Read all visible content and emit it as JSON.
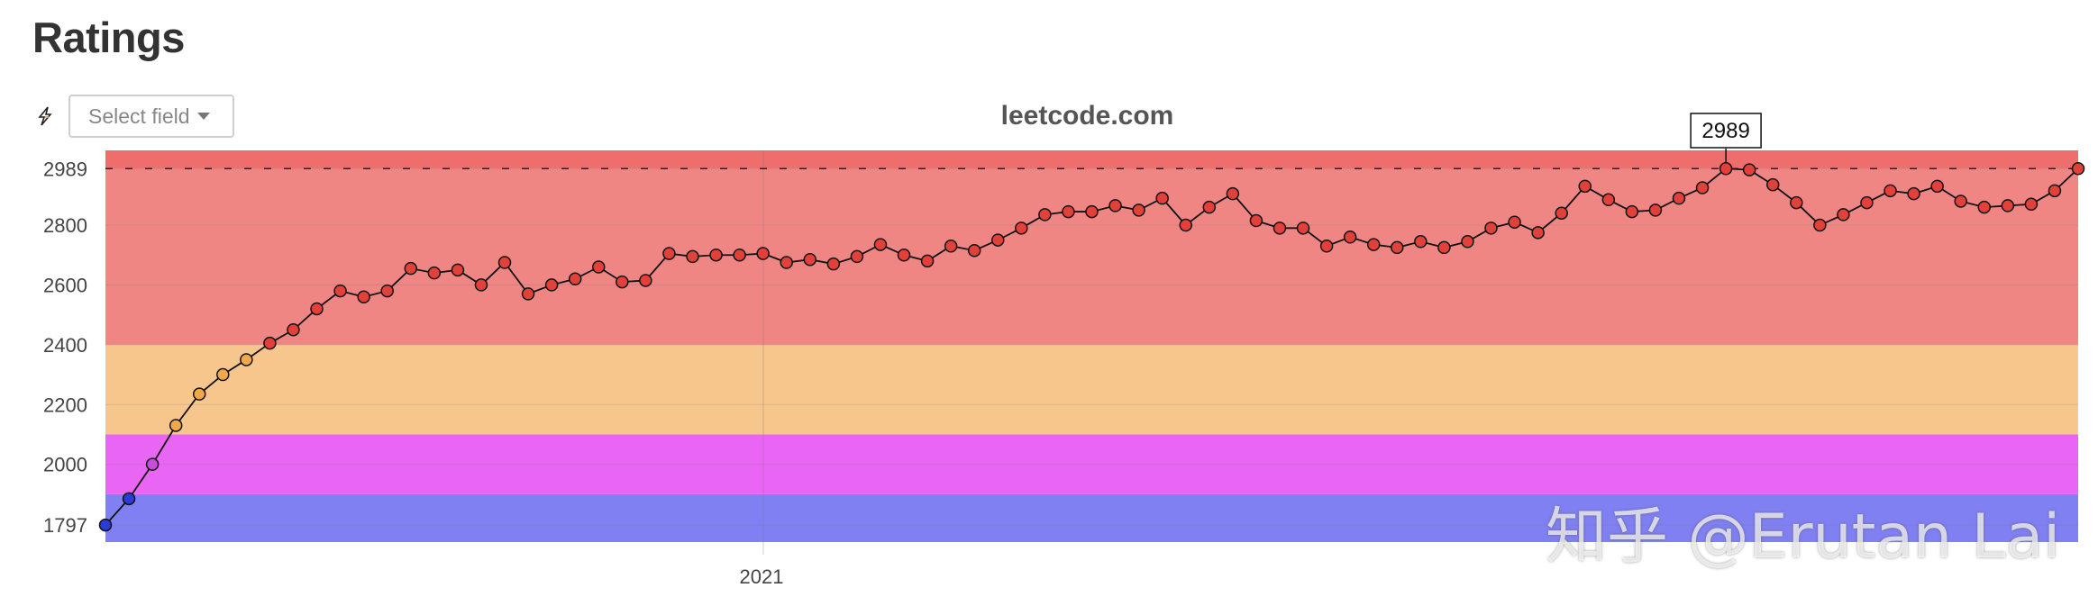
{
  "page": {
    "title": "Ratings"
  },
  "toolbar": {
    "icon": "lightning-chart-icon",
    "select_placeholder": "Select field"
  },
  "watermark": {
    "text": "知乎 @Erutan Lai"
  },
  "chart_data": {
    "type": "line",
    "title": "leetcode.com",
    "xlabel": "",
    "ylabel": "",
    "x_tick_labels": [
      "2021"
    ],
    "y_ticks": [
      1797,
      2000,
      2200,
      2400,
      2600,
      2800,
      2989
    ],
    "ylim": [
      1740,
      3050
    ],
    "max_line": 2989,
    "max_label": "2989",
    "grid": true,
    "rating_bands": [
      {
        "from": 1740,
        "to": 1900,
        "color": "#8080f2"
      },
      {
        "from": 1900,
        "to": 2100,
        "color": "#e866f3"
      },
      {
        "from": 2100,
        "to": 2400,
        "color": "#f6c68c"
      },
      {
        "from": 2400,
        "to": 2990,
        "color": "#ef8684"
      },
      {
        "from": 2990,
        "to": 3050,
        "color": "#ee6e6d"
      }
    ],
    "series": [
      {
        "values": [
          1797,
          1885,
          2000,
          2130,
          2235,
          2300,
          2350,
          2405,
          2450,
          2520,
          2580,
          2560,
          2580,
          2655,
          2640,
          2650,
          2600,
          2675,
          2570,
          2600,
          2620,
          2660,
          2610,
          2615,
          2705,
          2695,
          2700,
          2700,
          2705,
          2675,
          2685,
          2670,
          2695,
          2735,
          2700,
          2680,
          2730,
          2715,
          2750,
          2790,
          2835,
          2845,
          2845,
          2865,
          2850,
          2890,
          2800,
          2860,
          2905,
          2815,
          2790,
          2790,
          2730,
          2760,
          2735,
          2725,
          2745,
          2725,
          2745,
          2790,
          2810,
          2775,
          2840,
          2930,
          2885,
          2845,
          2850,
          2890,
          2925,
          2989,
          2985,
          2935,
          2875,
          2800,
          2835,
          2875,
          2915,
          2905,
          2930,
          2880,
          2860,
          2865,
          2870,
          2915,
          2989
        ]
      }
    ],
    "point_colors": [
      "#2b3bd6",
      "#2b3bd6",
      "#c24fd6",
      "#f0a848",
      "#f0a848",
      "#f0a848",
      "#f0a848",
      "#e2413a"
    ]
  }
}
